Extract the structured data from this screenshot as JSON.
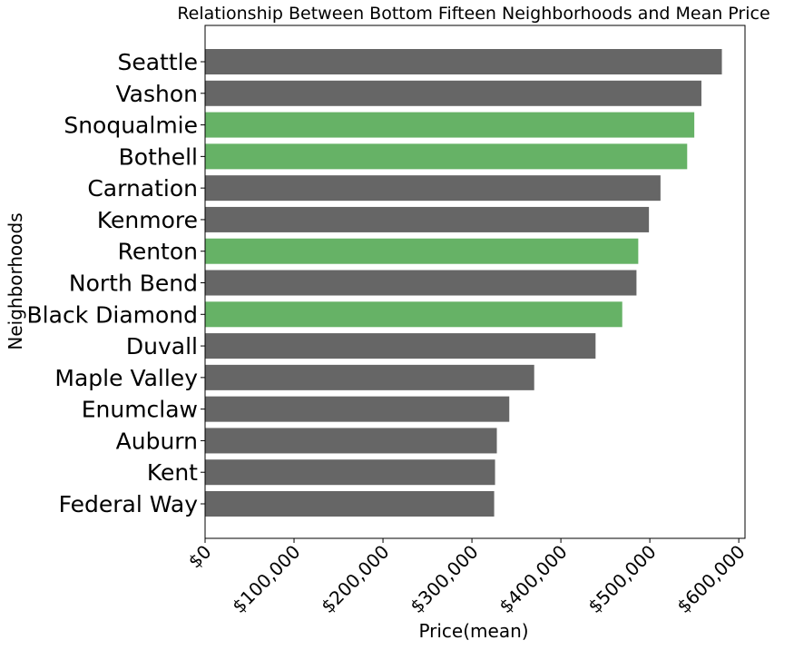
{
  "chart_data": {
    "type": "bar",
    "orientation": "horizontal",
    "title": "Relationship Between Bottom Fifteen Neighborhoods and Mean Price",
    "xlabel": "Price(mean)",
    "ylabel": "Neighborhoods",
    "xlim": [
      0,
      607000
    ],
    "xticks": [
      0,
      100000,
      200000,
      300000,
      400000,
      500000,
      600000
    ],
    "xtick_labels": [
      "$0",
      "$100,000",
      "$200,000",
      "$300,000",
      "$400,000",
      "$500,000",
      "$600,000"
    ],
    "grid": false,
    "categories": [
      "Seattle",
      "Vashon",
      "Snoqualmie",
      "Bothell",
      "Carnation",
      "Kenmore",
      "Renton",
      "North Bend",
      "Black Diamond",
      "Duvall",
      "Maple Valley",
      "Enumclaw",
      "Auburn",
      "Kent",
      "Federal Way"
    ],
    "values": [
      581000,
      558000,
      550000,
      542000,
      512000,
      499000,
      487000,
      485000,
      469000,
      439000,
      370000,
      342000,
      328000,
      326000,
      325000
    ],
    "highlighted": [
      false,
      false,
      true,
      true,
      false,
      false,
      true,
      false,
      true,
      false,
      false,
      false,
      false,
      false,
      false
    ],
    "colors": {
      "default": "#666666",
      "highlight": "#66b266"
    }
  }
}
